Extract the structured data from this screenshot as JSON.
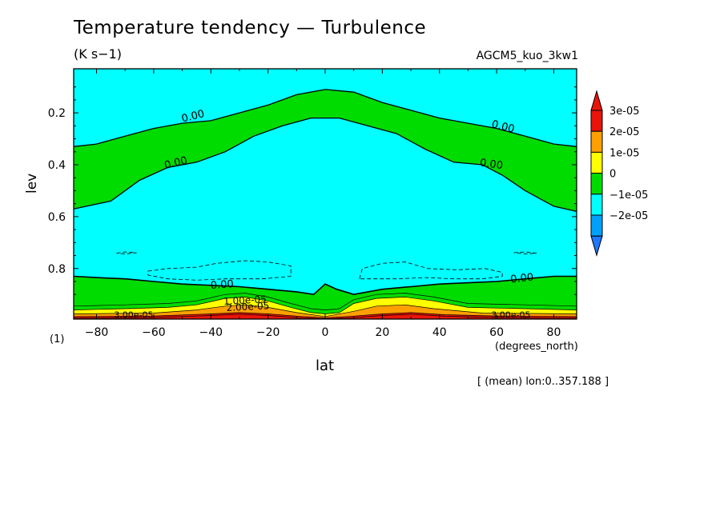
{
  "chart_data": {
    "type": "contour",
    "title": "Temperature tendency — Turbulence",
    "units": "(K s−1)",
    "run_label": "AGCM5_kuo_3kw1",
    "xlabel": "lat",
    "xunits": "(degrees_north)",
    "ylabel": "lev",
    "yunits": "(1)",
    "footnote": "[ (mean) lon:0..357.188 ]",
    "xlim": [
      -88,
      88
    ],
    "ylim": [
      0.995,
      0.03
    ],
    "xticks": [
      -80,
      -60,
      -40,
      -20,
      0,
      20,
      40,
      60,
      80
    ],
    "yticks": [
      0.2,
      0.4,
      0.6,
      0.8
    ],
    "colorbar": [
      {
        "label": "3e-05",
        "color": "#e8140a"
      },
      {
        "label": "2e-05",
        "color": "#ffa000"
      },
      {
        "label": "1e-05",
        "color": "#ffff00"
      },
      {
        "label": "0",
        "color": "#00dc00"
      },
      {
        "label": "−1e-05",
        "color": "#00ffff"
      },
      {
        "label": "−2e-05",
        "color": "#00a0ff"
      }
    ],
    "colorbar_extremes": {
      "top": "#e8140a",
      "bottom": "#1e78ff"
    },
    "contour_labels": [
      "0.00",
      "0.00",
      "0.00",
      "0.00",
      "0.00",
      "0.00",
      "1.00e-05",
      "2.00e-05",
      "3.00e-05",
      "3.00e-05"
    ],
    "upper_zero_top": [
      [
        -88,
        0.33
      ],
      [
        -80,
        0.32
      ],
      [
        -70,
        0.29
      ],
      [
        -60,
        0.26
      ],
      [
        -50,
        0.24
      ],
      [
        -40,
        0.23
      ],
      [
        -30,
        0.2
      ],
      [
        -20,
        0.17
      ],
      [
        -10,
        0.13
      ],
      [
        0,
        0.11
      ],
      [
        10,
        0.12
      ],
      [
        20,
        0.16
      ],
      [
        30,
        0.19
      ],
      [
        40,
        0.22
      ],
      [
        50,
        0.24
      ],
      [
        60,
        0.26
      ],
      [
        70,
        0.29
      ],
      [
        80,
        0.32
      ],
      [
        88,
        0.33
      ]
    ],
    "upper_zero_bottom": [
      [
        88,
        0.58
      ],
      [
        80,
        0.56
      ],
      [
        70,
        0.5
      ],
      [
        62,
        0.44
      ],
      [
        55,
        0.4
      ],
      [
        45,
        0.39
      ],
      [
        35,
        0.34
      ],
      [
        25,
        0.28
      ],
      [
        15,
        0.25
      ],
      [
        5,
        0.22
      ],
      [
        0,
        0.22
      ],
      [
        -5,
        0.22
      ],
      [
        -15,
        0.25
      ],
      [
        -25,
        0.29
      ],
      [
        -35,
        0.35
      ],
      [
        -45,
        0.39
      ],
      [
        -55,
        0.41
      ],
      [
        -65,
        0.46
      ],
      [
        -75,
        0.54
      ],
      [
        -88,
        0.57
      ]
    ],
    "lower_zero": [
      [
        -88,
        0.83
      ],
      [
        -80,
        0.835
      ],
      [
        -70,
        0.84
      ],
      [
        -60,
        0.85
      ],
      [
        -50,
        0.86
      ],
      [
        -40,
        0.865
      ],
      [
        -30,
        0.87
      ],
      [
        -20,
        0.88
      ],
      [
        -10,
        0.89
      ],
      [
        -4,
        0.9
      ],
      [
        0,
        0.86
      ],
      [
        4,
        0.88
      ],
      [
        10,
        0.9
      ],
      [
        20,
        0.88
      ],
      [
        30,
        0.87
      ],
      [
        40,
        0.86
      ],
      [
        50,
        0.855
      ],
      [
        60,
        0.85
      ],
      [
        70,
        0.84
      ],
      [
        80,
        0.83
      ],
      [
        88,
        0.83
      ]
    ],
    "yellow_top": [
      [
        -88,
        0.96
      ],
      [
        -70,
        0.955
      ],
      [
        -55,
        0.95
      ],
      [
        -45,
        0.94
      ],
      [
        -35,
        0.915
      ],
      [
        -28,
        0.91
      ],
      [
        -20,
        0.925
      ],
      [
        -12,
        0.95
      ],
      [
        -5,
        0.97
      ],
      [
        0,
        0.975
      ],
      [
        5,
        0.97
      ],
      [
        10,
        0.935
      ],
      [
        18,
        0.915
      ],
      [
        28,
        0.91
      ],
      [
        38,
        0.925
      ],
      [
        50,
        0.95
      ],
      [
        70,
        0.955
      ],
      [
        88,
        0.96
      ]
    ],
    "orange_top": [
      [
        -88,
        0.975
      ],
      [
        -60,
        0.972
      ],
      [
        -45,
        0.96
      ],
      [
        -35,
        0.945
      ],
      [
        -28,
        0.94
      ],
      [
        -20,
        0.95
      ],
      [
        -10,
        0.97
      ],
      [
        0,
        0.985
      ],
      [
        10,
        0.965
      ],
      [
        18,
        0.945
      ],
      [
        28,
        0.94
      ],
      [
        38,
        0.955
      ],
      [
        55,
        0.972
      ],
      [
        88,
        0.975
      ]
    ],
    "red_top": [
      [
        -88,
        0.985
      ],
      [
        -60,
        0.983
      ],
      [
        -40,
        0.975
      ],
      [
        -30,
        0.97
      ],
      [
        -20,
        0.975
      ],
      [
        -8,
        0.985
      ],
      [
        0,
        0.99
      ],
      [
        8,
        0.985
      ],
      [
        20,
        0.975
      ],
      [
        30,
        0.97
      ],
      [
        42,
        0.978
      ],
      [
        60,
        0.983
      ],
      [
        88,
        0.985
      ]
    ],
    "dashed_regions": [
      [
        [
          -73,
          0.741
        ],
        [
          -70,
          0.736
        ],
        [
          -66,
          0.739
        ],
        [
          -70,
          0.744
        ]
      ],
      [
        [
          -62,
          0.81
        ],
        [
          -55,
          0.8
        ],
        [
          -45,
          0.795
        ],
        [
          -38,
          0.78
        ],
        [
          -28,
          0.77
        ],
        [
          -20,
          0.775
        ],
        [
          -12,
          0.79
        ],
        [
          -12,
          0.83
        ],
        [
          -22,
          0.84
        ],
        [
          -35,
          0.84
        ],
        [
          -45,
          0.845
        ],
        [
          -55,
          0.84
        ],
        [
          -62,
          0.825
        ]
      ],
      [
        [
          12,
          0.84
        ],
        [
          13,
          0.8
        ],
        [
          20,
          0.78
        ],
        [
          28,
          0.775
        ],
        [
          36,
          0.8
        ],
        [
          46,
          0.805
        ],
        [
          56,
          0.8
        ],
        [
          62,
          0.815
        ],
        [
          62,
          0.83
        ],
        [
          55,
          0.84
        ],
        [
          45,
          0.84
        ],
        [
          35,
          0.835
        ],
        [
          25,
          0.84
        ]
      ],
      [
        [
          66,
          0.739
        ],
        [
          70,
          0.736
        ],
        [
          74,
          0.741
        ],
        [
          70,
          0.744
        ]
      ]
    ]
  }
}
